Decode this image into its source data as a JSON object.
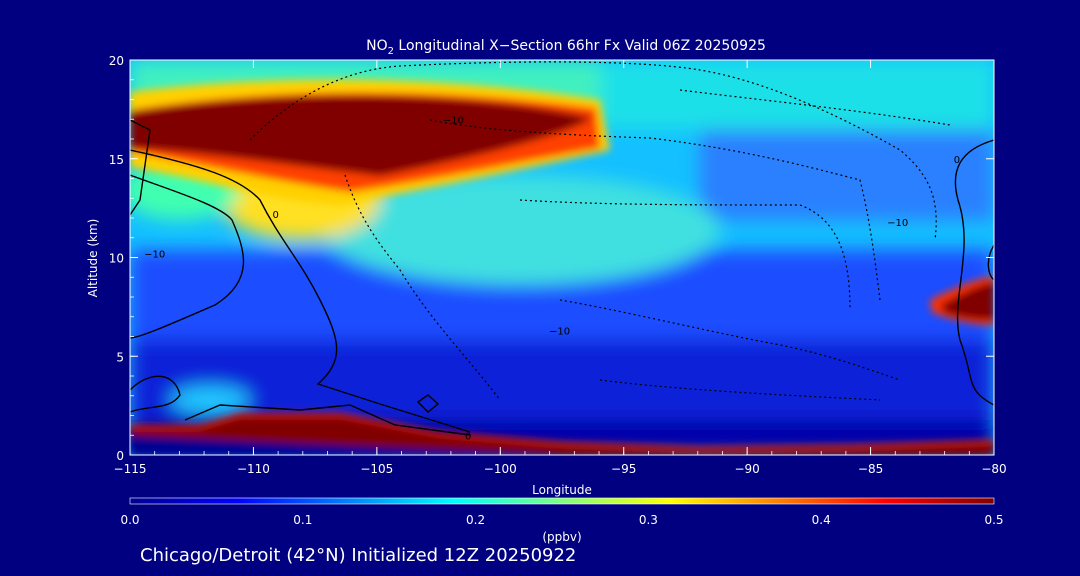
{
  "figure": {
    "title_prefix": "NO",
    "title_subscript": "2",
    "title_suffix": " Longitudinal X−Section 66hr  Fx Valid 06Z 20250925",
    "footer": "Chicago/Detroit (42°N) Initialized 12Z 20250922",
    "background": "#000080"
  },
  "chart_data": {
    "type": "heatmap",
    "xlabel": "Longitude",
    "ylabel": "Altitude (km)",
    "xlim": [
      -115,
      -80
    ],
    "ylim": [
      0,
      20
    ],
    "x_ticks": [
      -115,
      -110,
      -105,
      -100,
      -95,
      -90,
      -85,
      -80
    ],
    "x_tick_labels": [
      "−115",
      "−110",
      "−105",
      "−100",
      "−95",
      "−90",
      "−85",
      "−80"
    ],
    "y_ticks": [
      0,
      5,
      10,
      15,
      20
    ],
    "y_tick_labels": [
      "0",
      "5",
      "10",
      "15",
      "20"
    ],
    "colorbar": {
      "label": "(ppbv)",
      "range": [
        0.0,
        0.5
      ],
      "ticks": [
        0.0,
        0.1,
        0.2,
        0.3,
        0.4,
        0.5
      ],
      "tick_labels": [
        "0.0",
        "0.1",
        "0.2",
        "0.3",
        "0.4",
        "0.5"
      ],
      "colormap": [
        "#00008f",
        "#0000ff",
        "#0080ff",
        "#00ffff",
        "#80ff80",
        "#ffff00",
        "#ff8000",
        "#ff0000",
        "#800000"
      ]
    },
    "contour_labels": [
      {
        "text": "0",
        "lon": -109.1,
        "alt": 12.2
      },
      {
        "text": "0",
        "lon": -101.3,
        "alt": 1.0
      },
      {
        "text": "0",
        "lon": -81.5,
        "alt": 15.0
      },
      {
        "text": "−10",
        "lon": -114.0,
        "alt": 10.2
      },
      {
        "text": "−10",
        "lon": -101.9,
        "alt": 17.0
      },
      {
        "text": "−10",
        "lon": -97.6,
        "alt": 6.3
      },
      {
        "text": "−10",
        "lon": -83.9,
        "alt": 11.8
      }
    ]
  }
}
